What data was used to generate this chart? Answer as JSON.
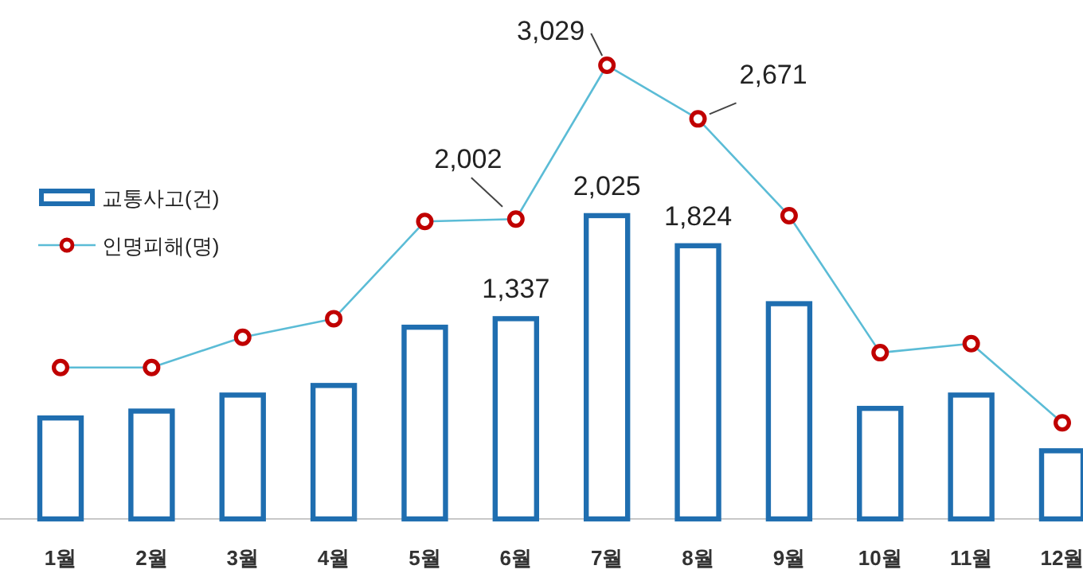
{
  "chart_data": {
    "type": "bar",
    "categories": [
      "1월",
      "2월",
      "3월",
      "4월",
      "5월",
      "6월",
      "7월",
      "8월",
      "9월",
      "10월",
      "11월",
      "12월"
    ],
    "series": [
      {
        "name": "교통사고(건)",
        "color": "#1f6eb0",
        "values": [
          674,
          720,
          827,
          891,
          1280,
          1337,
          2025,
          1824,
          1437,
          738,
          827,
          455
        ],
        "value_labels": [
          null,
          null,
          null,
          null,
          null,
          "1,337",
          "2,025",
          "1,824",
          null,
          null,
          null,
          null
        ]
      },
      {
        "name": "인명피해(명)",
        "type": "line",
        "color": "#5bbcd6",
        "marker": "circle",
        "values": [
          1011,
          1011,
          1213,
          1337,
          1986,
          2002,
          3029,
          2671,
          2025,
          1110,
          1170,
          642
        ],
        "value_labels": [
          null,
          null,
          null,
          null,
          null,
          "2,002",
          "3,029",
          "2,671",
          null,
          null,
          null,
          null
        ]
      }
    ],
    "legend": "left",
    "grid": false
  }
}
